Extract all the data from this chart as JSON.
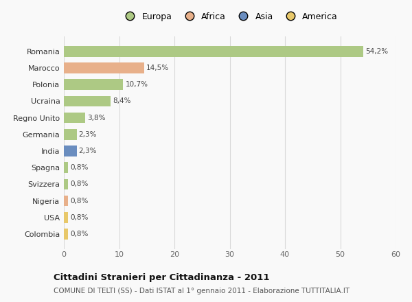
{
  "countries": [
    "Romania",
    "Marocco",
    "Polonia",
    "Ucraina",
    "Regno Unito",
    "Germania",
    "India",
    "Spagna",
    "Svizzera",
    "Nigeria",
    "USA",
    "Colombia"
  ],
  "values": [
    54.2,
    14.5,
    10.7,
    8.4,
    3.8,
    2.3,
    2.3,
    0.8,
    0.8,
    0.8,
    0.8,
    0.8
  ],
  "labels": [
    "54,2%",
    "14,5%",
    "10,7%",
    "8,4%",
    "3,8%",
    "2,3%",
    "2,3%",
    "0,8%",
    "0,8%",
    "0,8%",
    "0,8%",
    "0,8%"
  ],
  "colors": [
    "#adc984",
    "#e8b08a",
    "#adc984",
    "#adc984",
    "#adc984",
    "#adc984",
    "#6a8dbf",
    "#adc984",
    "#adc984",
    "#e8b08a",
    "#e8c86a",
    "#e8c86a"
  ],
  "legend_labels": [
    "Europa",
    "Africa",
    "Asia",
    "America"
  ],
  "legend_colors": [
    "#adc984",
    "#e8b08a",
    "#6a8dbf",
    "#e8c86a"
  ],
  "title": "Cittadini Stranieri per Cittadinanza - 2011",
  "subtitle": "COMUNE DI TELTI (SS) - Dati ISTAT al 1° gennaio 2011 - Elaborazione TUTTITALIA.IT",
  "xlim": [
    0,
    60
  ],
  "xticks": [
    0,
    10,
    20,
    30,
    40,
    50,
    60
  ],
  "bg_color": "#f9f9f9",
  "grid_color": "#d8d8d8",
  "bar_height": 0.65
}
